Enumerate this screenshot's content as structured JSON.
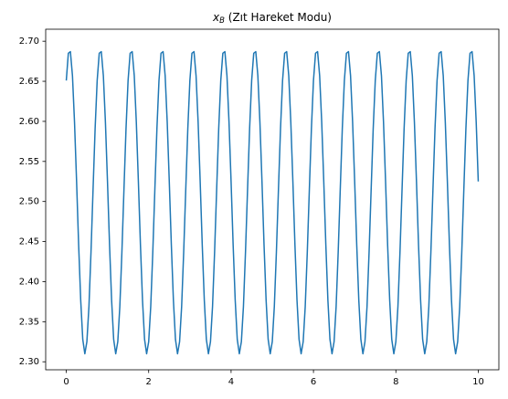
{
  "chart_data": {
    "type": "line",
    "title": [
      "x",
      "B",
      " (Zıt Hareket Modu)"
    ],
    "color": "#1f77b4",
    "xlim": [
      -0.5,
      10.5
    ],
    "xticks": [
      0,
      2,
      4,
      6,
      8,
      10
    ],
    "ylim": [
      2.29,
      2.715
    ],
    "yticks": [
      {
        "value": 2.3,
        "label": "2.30"
      },
      2.35,
      {
        "value": 2.4,
        "label": "2.40"
      },
      2.45,
      {
        "value": 2.5,
        "label": "2.50"
      },
      2.55,
      {
        "value": 2.6,
        "label": "2.60"
      },
      2.65,
      {
        "value": 2.7,
        "label": "2.70"
      }
    ],
    "x": [
      0,
      0.05,
      0.1,
      0.15,
      0.2,
      0.25,
      0.3,
      0.35,
      0.4,
      0.45,
      0.5,
      0.55,
      0.6,
      0.65,
      0.7,
      0.75,
      0.8,
      0.85,
      0.9,
      0.95,
      1,
      1.05,
      1.1,
      1.15,
      1.2,
      1.25,
      1.3,
      1.35,
      1.4,
      1.45,
      1.5,
      1.55,
      1.6,
      1.65,
      1.7,
      1.75,
      1.8,
      1.85,
      1.9,
      1.95,
      2,
      2.05,
      2.1,
      2.15,
      2.2,
      2.25,
      2.3,
      2.35,
      2.4,
      2.45,
      2.5,
      2.55,
      2.6,
      2.65,
      2.7,
      2.75,
      2.8,
      2.85,
      2.9,
      2.95,
      3,
      3.05,
      3.1,
      3.15,
      3.2,
      3.25,
      3.3,
      3.35,
      3.4,
      3.45,
      3.5,
      3.55,
      3.6,
      3.65,
      3.7,
      3.75,
      3.8,
      3.85,
      3.9,
      3.95,
      4,
      4.05,
      4.1,
      4.15,
      4.2,
      4.25,
      4.3,
      4.35,
      4.4,
      4.45,
      4.5,
      4.55,
      4.6,
      4.65,
      4.7,
      4.75,
      4.8,
      4.85,
      4.9,
      4.95,
      5,
      5.05,
      5.1,
      5.15,
      5.2,
      5.25,
      5.3,
      5.35,
      5.4,
      5.45,
      5.5,
      5.55,
      5.6,
      5.65,
      5.7,
      5.75,
      5.8,
      5.85,
      5.9,
      5.95,
      6,
      6.05,
      6.1,
      6.15,
      6.2,
      6.25,
      6.3,
      6.35,
      6.4,
      6.45,
      6.5,
      6.55,
      6.6,
      6.65,
      6.7,
      6.75,
      6.8,
      6.85,
      6.9,
      6.95,
      7,
      7.05,
      7.1,
      7.15,
      7.2,
      7.25,
      7.3,
      7.35,
      7.4,
      7.45,
      7.5,
      7.55,
      7.6,
      7.65,
      7.7,
      7.75,
      7.8,
      7.85,
      7.9,
      7.95,
      8,
      8.05,
      8.1,
      8.15,
      8.2,
      8.25,
      8.3,
      8.35,
      8.4,
      8.45,
      8.5,
      8.55,
      8.6,
      8.65,
      8.7,
      8.75,
      8.8,
      8.85,
      8.9,
      8.95,
      9,
      9.05,
      9.1,
      9.15,
      9.2,
      9.25,
      9.3,
      9.35,
      9.4,
      9.45,
      9.5,
      9.55,
      9.6,
      9.65,
      9.7,
      9.75,
      9.8,
      9.85,
      9.9,
      9.95,
      10
    ],
    "values": [
      2.651,
      2.685,
      2.687,
      2.657,
      2.599,
      2.525,
      2.446,
      2.377,
      2.328,
      2.31,
      2.325,
      2.369,
      2.437,
      2.515,
      2.591,
      2.651,
      2.685,
      2.687,
      2.657,
      2.599,
      2.525,
      2.446,
      2.377,
      2.328,
      2.31,
      2.325,
      2.369,
      2.437,
      2.515,
      2.591,
      2.651,
      2.685,
      2.687,
      2.657,
      2.599,
      2.525,
      2.446,
      2.377,
      2.328,
      2.31,
      2.325,
      2.369,
      2.437,
      2.515,
      2.591,
      2.651,
      2.685,
      2.687,
      2.657,
      2.599,
      2.525,
      2.446,
      2.377,
      2.328,
      2.31,
      2.325,
      2.369,
      2.437,
      2.515,
      2.591,
      2.651,
      2.685,
      2.687,
      2.657,
      2.599,
      2.525,
      2.446,
      2.377,
      2.328,
      2.31,
      2.325,
      2.369,
      2.437,
      2.515,
      2.591,
      2.651,
      2.685,
      2.687,
      2.657,
      2.599,
      2.525,
      2.446,
      2.377,
      2.328,
      2.31,
      2.325,
      2.369,
      2.437,
      2.515,
      2.591,
      2.651,
      2.685,
      2.687,
      2.657,
      2.599,
      2.525,
      2.446,
      2.377,
      2.328,
      2.31,
      2.325,
      2.369,
      2.437,
      2.515,
      2.591,
      2.651,
      2.685,
      2.687,
      2.657,
      2.599,
      2.525,
      2.446,
      2.377,
      2.328,
      2.31,
      2.325,
      2.369,
      2.437,
      2.515,
      2.591,
      2.651,
      2.685,
      2.687,
      2.657,
      2.599,
      2.525,
      2.446,
      2.377,
      2.328,
      2.31,
      2.325,
      2.369,
      2.437,
      2.515,
      2.591,
      2.651,
      2.685,
      2.687,
      2.657,
      2.599,
      2.525,
      2.446,
      2.377,
      2.328,
      2.31,
      2.325,
      2.369,
      2.437,
      2.515,
      2.591,
      2.651,
      2.685,
      2.687,
      2.657,
      2.599,
      2.525,
      2.446,
      2.377,
      2.328,
      2.31,
      2.325,
      2.369,
      2.437,
      2.515,
      2.591,
      2.651,
      2.685,
      2.687,
      2.657,
      2.599,
      2.525,
      2.446,
      2.377,
      2.328,
      2.31,
      2.325,
      2.369,
      2.437,
      2.515,
      2.591,
      2.651,
      2.685,
      2.687,
      2.657,
      2.599,
      2.525,
      2.446,
      2.377,
      2.328,
      2.31,
      2.325,
      2.369,
      2.437,
      2.515,
      2.591,
      2.651,
      2.685,
      2.687,
      2.657,
      2.599,
      2.525
    ]
  }
}
